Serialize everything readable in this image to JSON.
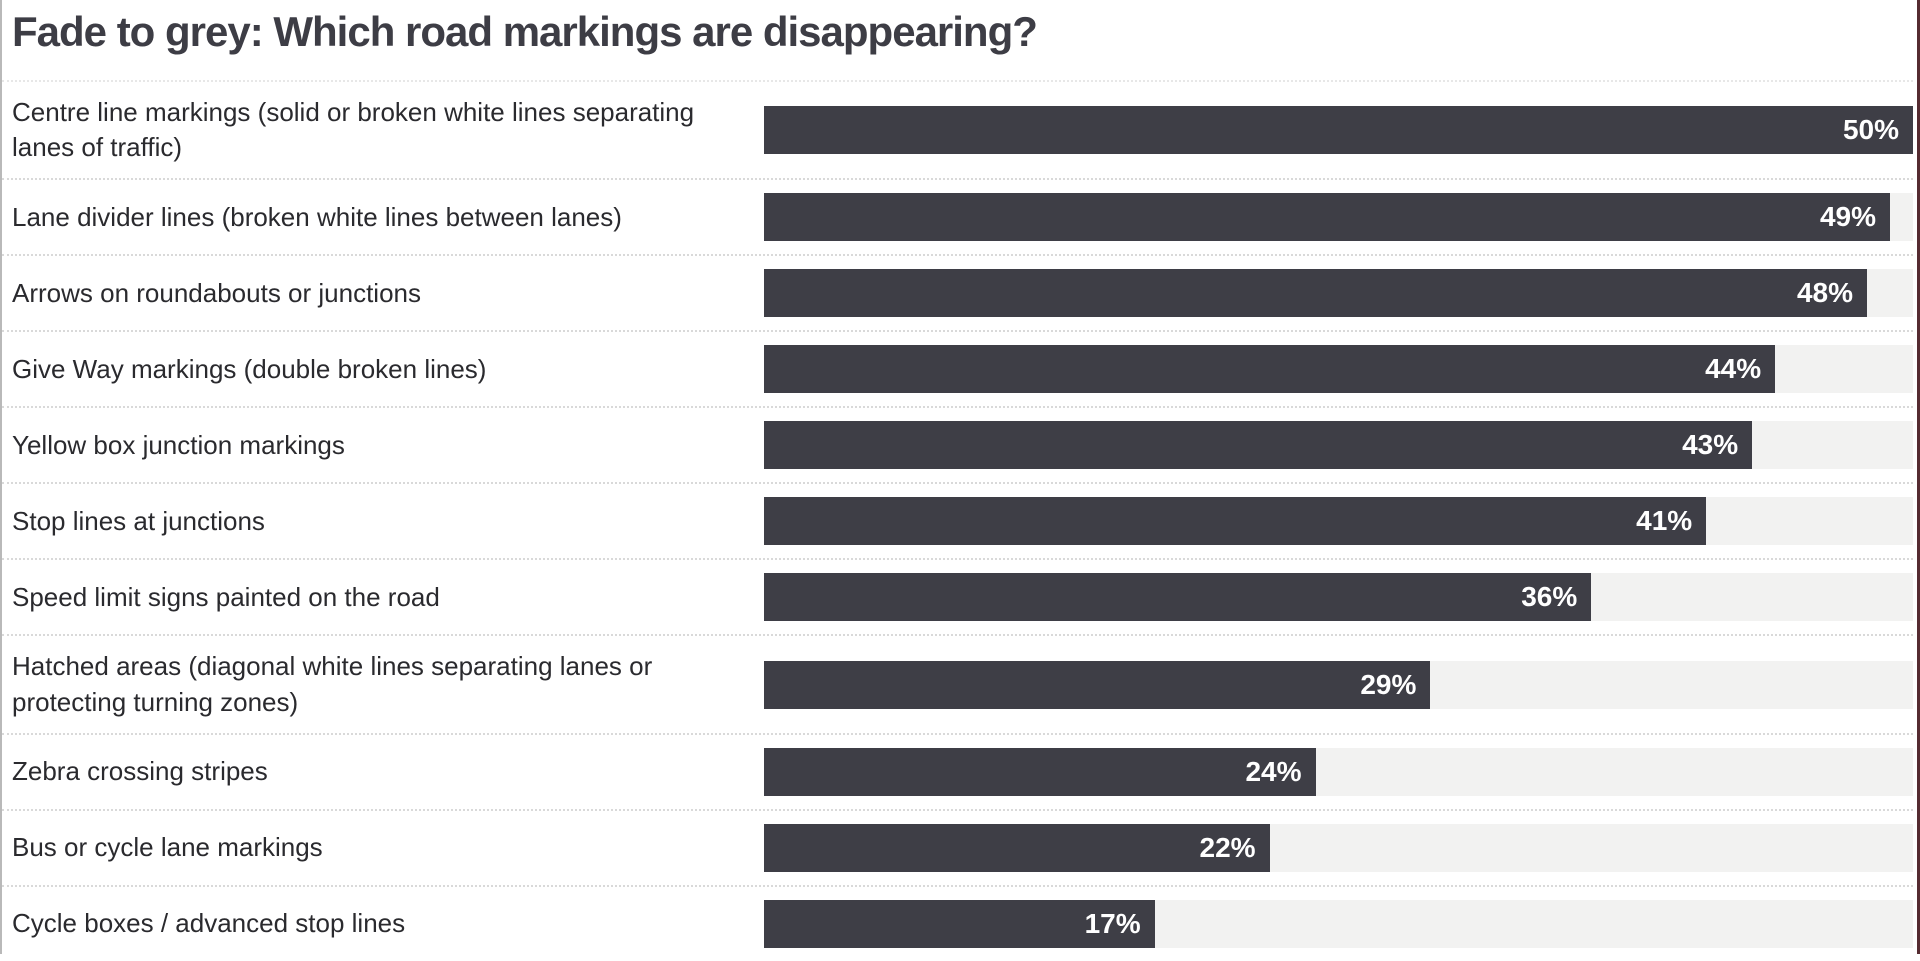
{
  "page": {
    "title": "Fade to grey: Which road markings are disappearing?"
  },
  "chart_data": {
    "type": "bar",
    "orientation": "horizontal",
    "title": "Fade to grey: Which road markings are disappearing?",
    "categories": [
      "Centre line markings (solid or broken white lines separating lanes of traffic)",
      "Lane divider lines (broken white lines between lanes)",
      "Arrows on roundabouts or junctions",
      "Give Way markings (double broken lines)",
      "Yellow box junction markings",
      "Stop lines at junctions",
      "Speed limit signs painted on the road",
      "Hatched areas (diagonal white lines separating lanes or protecting turning zones)",
      "Zebra crossing stripes",
      "Bus or cycle lane markings",
      "Cycle boxes / advanced stop lines"
    ],
    "values": [
      50,
      49,
      48,
      44,
      43,
      41,
      36,
      29,
      24,
      22,
      17
    ],
    "value_labels": [
      "50%",
      "49%",
      "48%",
      "44%",
      "43%",
      "41%",
      "36%",
      "29%",
      "24%",
      "22%",
      "17%"
    ],
    "value_suffix": "%",
    "xlabel": "",
    "ylabel": "",
    "xlim": [
      0,
      50
    ],
    "grid": false,
    "legend": "none",
    "value_label_position": "inside-end",
    "colors": {
      "bar": "#3e3e46",
      "track": "#f2f2f1",
      "value_label": "#ffffff",
      "title": "#3d3d45",
      "category_label": "#2a2a2e",
      "separator": "#d9d9d9"
    }
  }
}
